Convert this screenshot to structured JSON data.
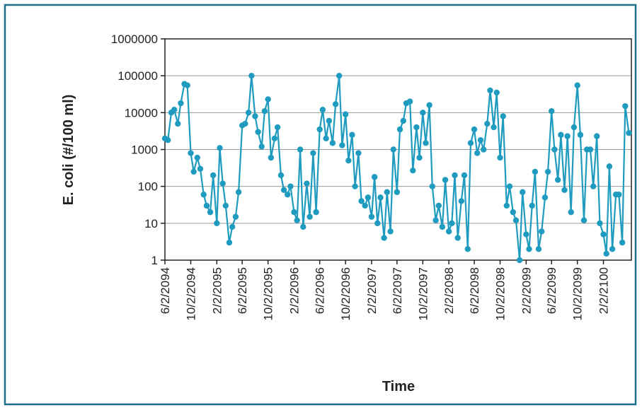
{
  "chart_data": {
    "type": "line",
    "ylabel": "E. coli (#/100 ml)",
    "xlabel": "Time",
    "yscale": "log",
    "grid": true,
    "ylim": [
      1,
      1000000
    ],
    "yticks": [
      1,
      10,
      100,
      1000,
      10000,
      100000,
      1000000
    ],
    "xlim": [
      "6/2/2094",
      "6/14/2100"
    ],
    "xticks": [
      "6/2/2094",
      "10/2/2094",
      "2/2/2095",
      "6/2/2095",
      "10/2/2095",
      "2/2/2096",
      "6/2/2096",
      "10/2/2096",
      "2/2/2097",
      "6/2/2097",
      "10/2/2097",
      "2/2/2098",
      "6/2/2098",
      "10/2/2098",
      "2/2/2099",
      "6/2/2099",
      "10/2/2099",
      "2/2/2100"
    ],
    "x": [
      "6/2/2094",
      "6/16/2094",
      "7/2/2094",
      "7/16/2094",
      "8/2/2094",
      "8/16/2094",
      "9/2/2094",
      "9/16/2094",
      "10/2/2094",
      "10/16/2094",
      "11/2/2094",
      "11/16/2094",
      "12/2/2094",
      "12/16/2094",
      "1/2/2095",
      "1/16/2095",
      "2/2/2095",
      "2/16/2095",
      "3/2/2095",
      "3/16/2095",
      "4/2/2095",
      "4/16/2095",
      "5/2/2095",
      "5/16/2095",
      "6/2/2095",
      "6/16/2095",
      "7/2/2095",
      "7/16/2095",
      "8/2/2095",
      "8/16/2095",
      "9/2/2095",
      "9/16/2095",
      "10/2/2095",
      "10/16/2095",
      "11/2/2095",
      "11/16/2095",
      "12/2/2095",
      "12/16/2095",
      "1/2/2096",
      "1/16/2096",
      "2/2/2096",
      "2/16/2096",
      "3/2/2096",
      "3/16/2096",
      "4/2/2096",
      "4/16/2096",
      "5/2/2096",
      "5/16/2096",
      "6/2/2096",
      "6/16/2096",
      "7/2/2096",
      "7/16/2096",
      "8/2/2096",
      "8/16/2096",
      "9/2/2096",
      "9/16/2096",
      "10/2/2096",
      "10/16/2096",
      "11/2/2096",
      "11/16/2096",
      "12/2/2096",
      "12/16/2096",
      "1/2/2097",
      "1/16/2097",
      "2/2/2097",
      "2/16/2097",
      "3/2/2097",
      "3/16/2097",
      "4/2/2097",
      "4/16/2097",
      "5/2/2097",
      "5/16/2097",
      "6/2/2097",
      "6/16/2097",
      "7/2/2097",
      "7/16/2097",
      "8/2/2097",
      "8/16/2097",
      "9/2/2097",
      "9/16/2097",
      "10/2/2097",
      "10/16/2097",
      "11/2/2097",
      "11/16/2097",
      "12/2/2097",
      "12/16/2097",
      "1/2/2098",
      "1/16/2098",
      "2/2/2098",
      "2/16/2098",
      "3/2/2098",
      "3/16/2098",
      "4/2/2098",
      "4/16/2098",
      "5/2/2098",
      "5/16/2098",
      "6/2/2098",
      "6/16/2098",
      "7/2/2098",
      "7/16/2098",
      "8/2/2098",
      "8/16/2098",
      "9/2/2098",
      "9/16/2098",
      "10/2/2098",
      "10/16/2098",
      "11/2/2098",
      "11/16/2098",
      "12/2/2098",
      "12/16/2098",
      "1/2/2099",
      "1/16/2099",
      "2/2/2099",
      "2/16/2099",
      "3/2/2099",
      "3/16/2099",
      "4/2/2099",
      "4/16/2099",
      "5/2/2099",
      "5/16/2099",
      "6/2/2099",
      "6/16/2099",
      "7/2/2099",
      "7/16/2099",
      "8/2/2099",
      "8/16/2099",
      "9/2/2099",
      "9/16/2099",
      "10/2/2099",
      "10/16/2099",
      "11/2/2099",
      "11/16/2099",
      "12/2/2099",
      "12/16/2099",
      "1/2/2100",
      "1/16/2100",
      "2/2/2100",
      "2/16/2100",
      "3/2/2100",
      "3/16/2100",
      "4/2/2100",
      "4/16/2100",
      "5/2/2100",
      "5/16/2100",
      "6/2/2100"
    ],
    "series": [
      {
        "color": "#1f9bbf",
        "values": [
          2000,
          1800,
          10000,
          12000,
          5000,
          18000,
          60000,
          55000,
          800,
          250,
          600,
          300,
          60,
          30,
          20,
          200,
          10,
          1100,
          120,
          30,
          3,
          8,
          15,
          70,
          4500,
          5000,
          10000,
          100000,
          8000,
          3000,
          1200,
          11000,
          23000,
          600,
          2000,
          4000,
          200,
          80,
          60,
          100,
          20,
          12,
          1000,
          8,
          120,
          15,
          800,
          20,
          3500,
          12000,
          2000,
          6000,
          1500,
          17000,
          100000,
          1300,
          9000,
          500,
          2500,
          100,
          800,
          40,
          30,
          50,
          15,
          180,
          10,
          50,
          4,
          70,
          6,
          1000,
          70,
          3500,
          6000,
          18000,
          20000,
          270,
          4000,
          600,
          10000,
          1500,
          16000,
          100,
          12,
          30,
          8,
          150,
          6,
          10,
          200,
          4,
          40,
          200,
          2,
          1500,
          3500,
          800,
          1800,
          1000,
          5000,
          40000,
          4000,
          35000,
          600,
          8000,
          30,
          100,
          20,
          12,
          1,
          70,
          5,
          2,
          30,
          250,
          2,
          6,
          50,
          250,
          11000,
          1000,
          150,
          2500,
          80,
          2300,
          20,
          4000,
          55000,
          2500,
          12,
          1000,
          1000,
          100,
          2300,
          10,
          5,
          1.5,
          350,
          2,
          60,
          60,
          3,
          15000,
          2800
        ]
      }
    ]
  }
}
